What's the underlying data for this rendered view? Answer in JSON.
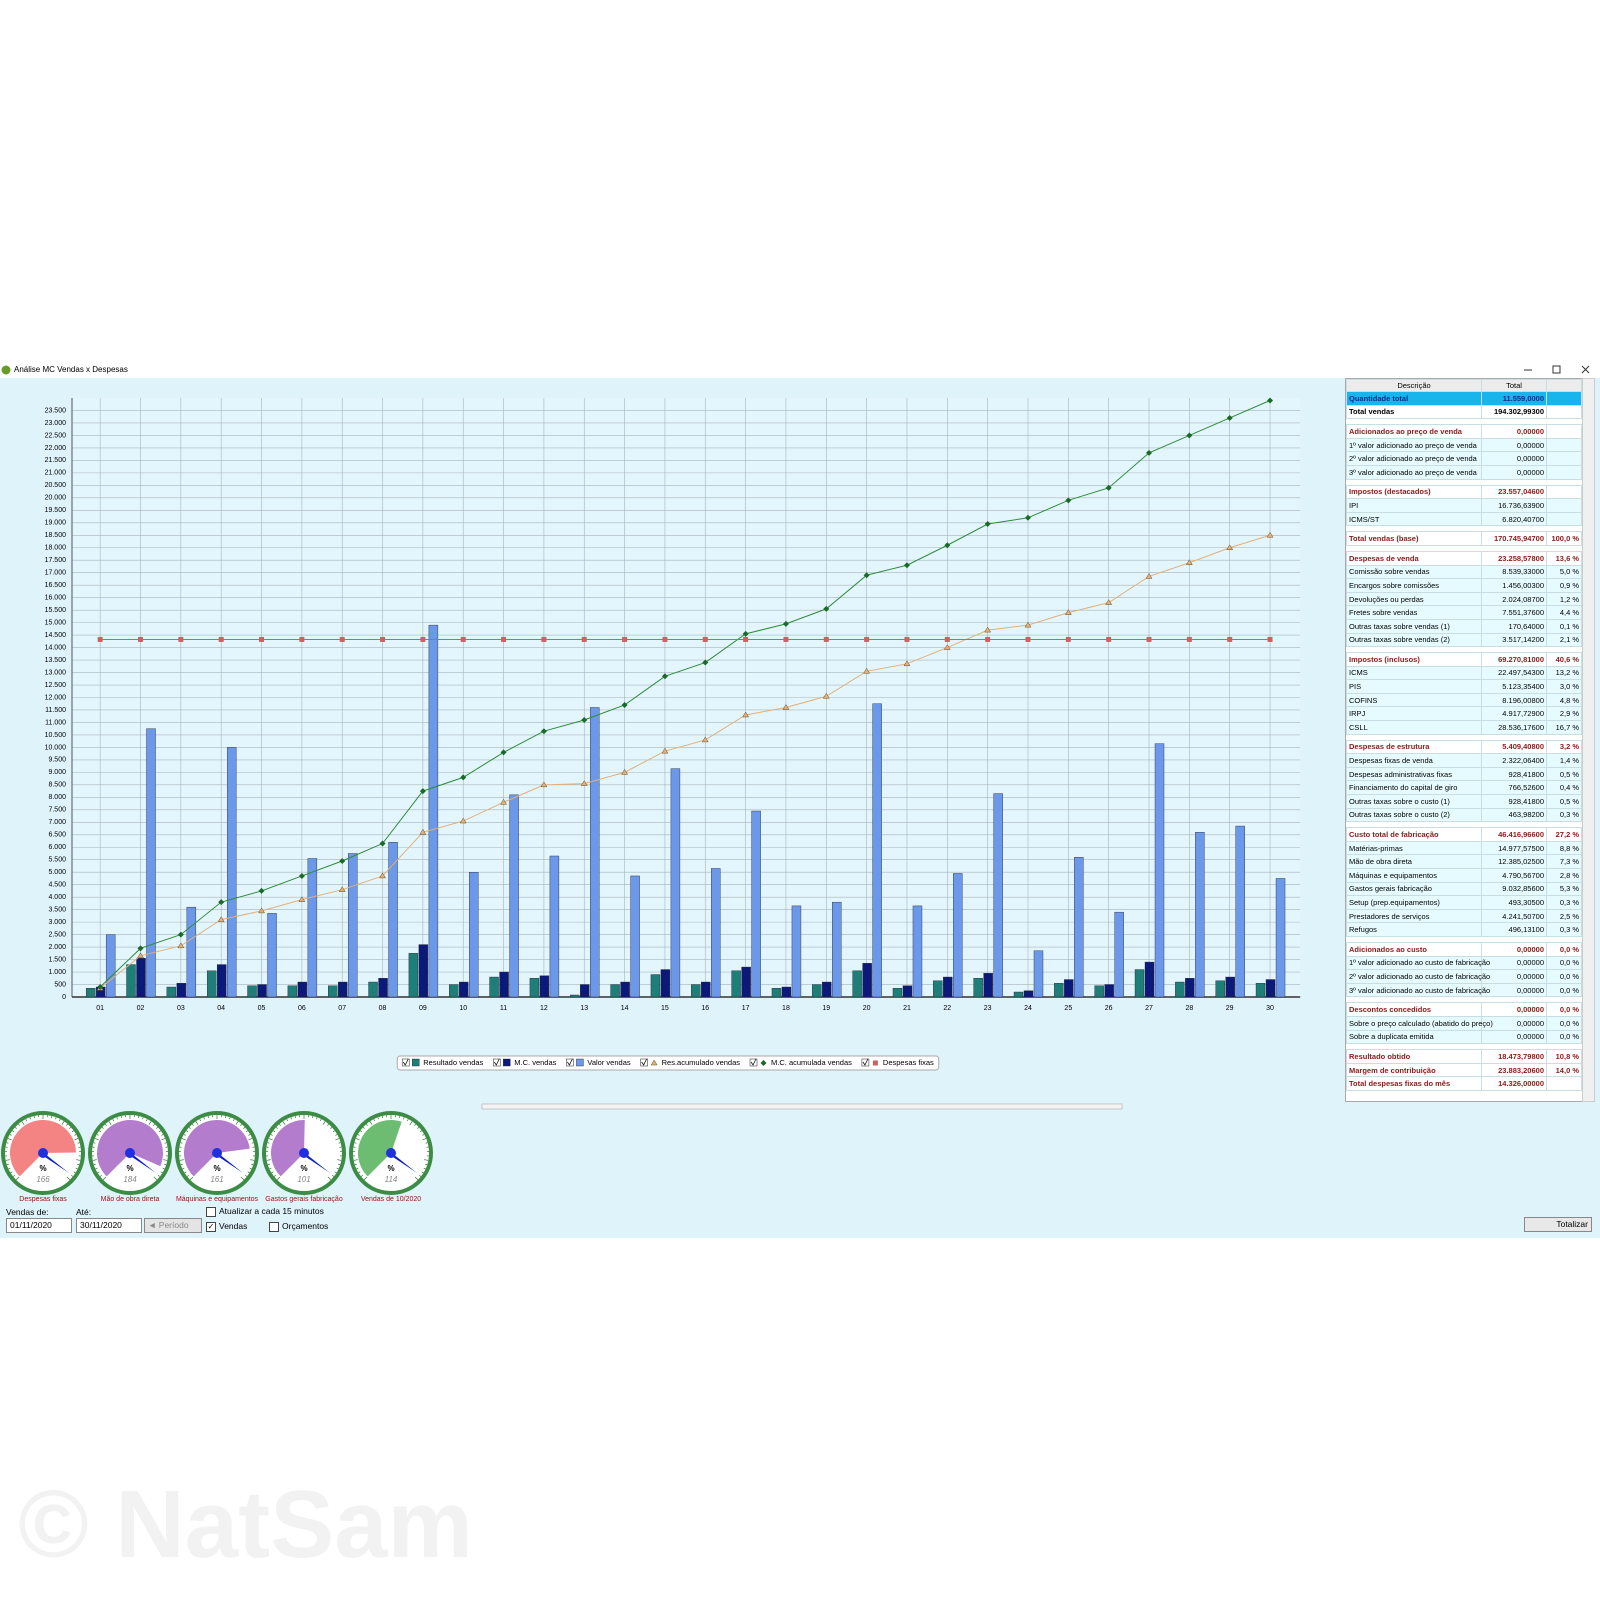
{
  "window": {
    "title": "Análise MC Vendas x Despesas"
  },
  "chart_data": {
    "type": "combo",
    "categories": [
      "01",
      "02",
      "03",
      "04",
      "05",
      "06",
      "07",
      "08",
      "09",
      "10",
      "11",
      "12",
      "13",
      "14",
      "15",
      "16",
      "17",
      "18",
      "19",
      "20",
      "21",
      "22",
      "23",
      "24",
      "25",
      "26",
      "27",
      "28",
      "29",
      "30"
    ],
    "ylim": [
      0,
      24000
    ],
    "yticks": [
      0,
      500,
      {
        "value": 1000,
        "label": "1.000"
      },
      {
        "value": 1500,
        "label": "1.500"
      },
      {
        "value": 2000,
        "label": "2.000"
      },
      {
        "value": 2500,
        "label": "2.500"
      },
      {
        "value": 3000,
        "label": "3.000"
      },
      {
        "value": 3500,
        "label": "3.500"
      },
      {
        "value": 4000,
        "label": "4.000"
      },
      {
        "value": 4500,
        "label": "4.500"
      },
      {
        "value": 5000,
        "label": "5.000"
      },
      {
        "value": 5500,
        "label": "5.500"
      },
      {
        "value": 6000,
        "label": "6.000"
      },
      {
        "value": 6500,
        "label": "6.500"
      },
      {
        "value": 7000,
        "label": "7.000"
      },
      {
        "value": 7500,
        "label": "7.500"
      },
      {
        "value": 8000,
        "label": "8.000"
      },
      {
        "value": 8500,
        "label": "8.500"
      },
      {
        "value": 9000,
        "label": "9.000"
      },
      {
        "value": 9500,
        "label": "9.500"
      },
      {
        "value": 10000,
        "label": "10.000"
      },
      {
        "value": 10500,
        "label": "10.500"
      },
      {
        "value": 11000,
        "label": "11.000"
      },
      {
        "value": 11500,
        "label": "11.500"
      },
      {
        "value": 12000,
        "label": "12.000"
      },
      {
        "value": 12500,
        "label": "12.500"
      },
      {
        "value": 13000,
        "label": "13.000"
      },
      {
        "value": 13500,
        "label": "13.500"
      },
      {
        "value": 14000,
        "label": "14.000"
      },
      {
        "value": 14500,
        "label": "14.500"
      },
      {
        "value": 15000,
        "label": "15.000"
      },
      {
        "value": 15500,
        "label": "15.500"
      },
      {
        "value": 16000,
        "label": "16.000"
      },
      {
        "value": 16500,
        "label": "16.500"
      },
      {
        "value": 17000,
        "label": "17.000"
      },
      {
        "value": 17500,
        "label": "17.500"
      },
      {
        "value": 18000,
        "label": "18.000"
      },
      {
        "value": 18500,
        "label": "18.500"
      },
      {
        "value": 19000,
        "label": "19.000"
      },
      {
        "value": 19500,
        "label": "19.500"
      },
      {
        "value": 20000,
        "label": "20.000"
      },
      {
        "value": 20500,
        "label": "20.500"
      },
      {
        "value": 21000,
        "label": "21.000"
      },
      {
        "value": 21500,
        "label": "21.500"
      },
      {
        "value": 22000,
        "label": "22.000"
      },
      {
        "value": 22500,
        "label": "22.500"
      },
      {
        "value": 23000,
        "label": "23.000"
      },
      {
        "value": 23500,
        "label": "23.500"
      }
    ],
    "grid": true,
    "series": [
      {
        "name": "Resultado vendas",
        "kind": "bar",
        "color": "#1d7f78",
        "values": [
          350,
          1300,
          400,
          1050,
          450,
          450,
          450,
          600,
          1750,
          500,
          800,
          750,
          80,
          500,
          900,
          500,
          1050,
          350,
          500,
          1050,
          350,
          650,
          750,
          200,
          550,
          450,
          1100,
          600,
          650,
          550
        ]
      },
      {
        "name": "M.C. vendas",
        "kind": "bar",
        "color": "#0b1a78",
        "values": [
          400,
          1550,
          550,
          1300,
          500,
          600,
          600,
          750,
          2100,
          600,
          1000,
          850,
          500,
          600,
          1100,
          600,
          1200,
          400,
          600,
          1350,
          450,
          800,
          950,
          250,
          700,
          500,
          1400,
          750,
          800,
          700
        ]
      },
      {
        "name": "Valor vendas",
        "kind": "bar",
        "color": "#6b98e8",
        "values": [
          2500,
          10750,
          3600,
          10000,
          3350,
          5550,
          5750,
          6200,
          14900,
          5000,
          8100,
          5650,
          11600,
          4850,
          9150,
          5150,
          7450,
          3650,
          3800,
          11750,
          3650,
          4950,
          8150,
          1850,
          5600,
          3400,
          10150,
          6600,
          6850,
          4750
        ]
      },
      {
        "name": "Res.acumulado vendas",
        "kind": "line",
        "marker": "triangle",
        "color": "#e0b07c",
        "values": [
          350,
          1650,
          2050,
          3100,
          3450,
          3900,
          4300,
          4850,
          6600,
          7050,
          7800,
          8500,
          8550,
          9000,
          9850,
          10300,
          11300,
          11600,
          12050,
          13050,
          13350,
          14000,
          14700,
          14900,
          15400,
          15800,
          16850,
          17400,
          18000,
          18500
        ]
      },
      {
        "name": "M.C. acumulada vendas",
        "kind": "line",
        "marker": "diamond",
        "color": "#2e8b3a",
        "values": [
          400,
          1950,
          2500,
          3800,
          4250,
          4850,
          5450,
          6150,
          8250,
          8800,
          9800,
          10650,
          11100,
          11700,
          12850,
          13400,
          14550,
          14950,
          15550,
          16900,
          17300,
          18100,
          18950,
          19200,
          19900,
          20400,
          21800,
          22500,
          23200,
          23900
        ]
      },
      {
        "name": "Despesas fixas",
        "kind": "line",
        "marker": "square",
        "color": "#d06060",
        "values": [
          14326,
          14326,
          14326,
          14326,
          14326,
          14326,
          14326,
          14326,
          14326,
          14326,
          14326,
          14326,
          14326,
          14326,
          14326,
          14326,
          14326,
          14326,
          14326,
          14326,
          14326,
          14326,
          14326,
          14326,
          14326,
          14326,
          14326,
          14326,
          14326,
          14326
        ]
      }
    ]
  },
  "table": {
    "columns": [
      "Descrição",
      "Total"
    ],
    "sections": [
      [
        [
          "Quantidade total",
          "11.559,0000"
        ],
        [
          "Total vendas",
          "194.302,99300"
        ]
      ],
      [
        [
          "Adicionados ao preço de venda",
          "0,00000"
        ],
        [
          "1º valor adicionado ao preço de venda",
          "0,00000"
        ],
        [
          "2º valor adicionado ao preço de venda",
          "0,00000"
        ],
        [
          "3º valor adicionado ao preço de venda",
          "0,00000"
        ]
      ],
      [
        [
          "Impostos (destacados)",
          "23.557,04600"
        ],
        [
          "IPI",
          "16.736,63900"
        ],
        [
          "ICMS/ST",
          "6.820,40700"
        ]
      ],
      [
        [
          "Total vendas (base)",
          "170.745,94700",
          "100,0 %"
        ]
      ],
      [
        [
          "Despesas de venda",
          "23.258,57800",
          "13,6 %"
        ],
        [
          "Comissão sobre vendas",
          "8.539,33000",
          "5,0 %"
        ],
        [
          "Encargos sobre comissões",
          "1.456,00300",
          "0,9 %"
        ],
        [
          "Devoluções ou perdas",
          "2.024,08700",
          "1,2 %"
        ],
        [
          "Fretes sobre vendas",
          "7.551,37600",
          "4,4 %"
        ],
        [
          "Outras taxas sobre vendas (1)",
          "170,64000",
          "0,1 %"
        ],
        [
          "Outras taxas sobre vendas (2)",
          "3.517,14200",
          "2,1 %"
        ]
      ],
      [
        [
          "Impostos (inclusos)",
          "69.270,81000",
          "40,6 %"
        ],
        [
          "ICMS",
          "22.497,54300",
          "13,2 %"
        ],
        [
          "PIS",
          "5.123,35400",
          "3,0 %"
        ],
        [
          "COFINS",
          "8.196,00800",
          "4,8 %"
        ],
        [
          "IRPJ",
          "4.917,72900",
          "2,9 %"
        ],
        [
          "CSLL",
          "28.536,17600",
          "16,7 %"
        ]
      ],
      [
        [
          "Despesas de estrutura",
          "5.409,40800",
          "3,2 %"
        ],
        [
          "Despesas fixas de venda",
          "2.322,06400",
          "1,4 %"
        ],
        [
          "Despesas administrativas fixas",
          "928,41800",
          "0,5 %"
        ],
        [
          "Financiamento do capital de giro",
          "766,52600",
          "0,4 %"
        ],
        [
          "Outras taxas sobre o custo (1)",
          "928,41800",
          "0,5 %"
        ],
        [
          "Outras taxas sobre o custo (2)",
          "463,98200",
          "0,3 %"
        ]
      ],
      [
        [
          "Custo total de fabricação",
          "46.416,96600",
          "27,2 %"
        ],
        [
          "Matérias-primas",
          "14.977,57500",
          "8,8 %"
        ],
        [
          "Mão de obra direta",
          "12.385,02500",
          "7,3 %"
        ],
        [
          "Máquinas e equipamentos",
          "4.790,56700",
          "2,8 %"
        ],
        [
          "Gastos gerais fabricação",
          "9.032,85600",
          "5,3 %"
        ],
        [
          "Setup (prep.equipamentos)",
          "493,30500",
          "0,3 %"
        ],
        [
          "Prestadores de serviços",
          "4.241,50700",
          "2,5 %"
        ],
        [
          "Refugos",
          "496,13100",
          "0,3 %"
        ]
      ],
      [
        [
          "Adicionados ao custo",
          "0,00000",
          "0,0 %"
        ],
        [
          "1º valor adicionado ao custo de fabricação",
          "0,00000",
          "0,0 %"
        ],
        [
          "2º valor adicionado ao custo de fabricação",
          "0,00000",
          "0,0 %"
        ],
        [
          "3º valor adicionado ao custo de fabricação",
          "0,00000",
          "0,0 %"
        ]
      ],
      [
        [
          "Descontos concedidos",
          "0,00000",
          "0,0 %"
        ],
        [
          "Sobre o preço calculado (abatido do preço)",
          "0,00000",
          "0,0 %"
        ],
        [
          "Sobre a duplicata emitida",
          "0,00000",
          "0,0 %"
        ]
      ],
      [
        [
          "Resultado obtido",
          "18.473,79800",
          "10,8 %"
        ],
        [
          "Margem de contribuição",
          "23.883,20600",
          "14,0 %"
        ],
        [
          "Total despesas fixas do mês",
          "14.326,00000"
        ]
      ]
    ]
  },
  "gauges": {
    "range": [
      0,
      200
    ],
    "unit": "%",
    "items": [
      {
        "label": "Despesas fixas",
        "value": 166,
        "color": "#f48484"
      },
      {
        "label": "Mão de obra direta",
        "value": 184,
        "color": "#b47ccc"
      },
      {
        "label": "Máquinas e equipamentos",
        "value": 161,
        "color": "#b47ccc"
      },
      {
        "label": "Gastos gerais fabricação",
        "value": 101,
        "color": "#b47ccc"
      },
      {
        "label": "Vendas de 10/2020",
        "value": 114,
        "color": "#6cbc72"
      }
    ]
  },
  "controls": {
    "from_label": "Vendas de:",
    "from": "01/11/2020",
    "to_label": "Até:",
    "to": "30/11/2020",
    "period": "◄ Período",
    "options": [
      {
        "label": "Atualizar a cada 15 minutos",
        "checked": false
      },
      {
        "label": "Vendas",
        "checked": true
      },
      {
        "label": "Orçamentos",
        "checked": false
      }
    ],
    "button": "Totalizar"
  },
  "watermark": "© NatSam"
}
